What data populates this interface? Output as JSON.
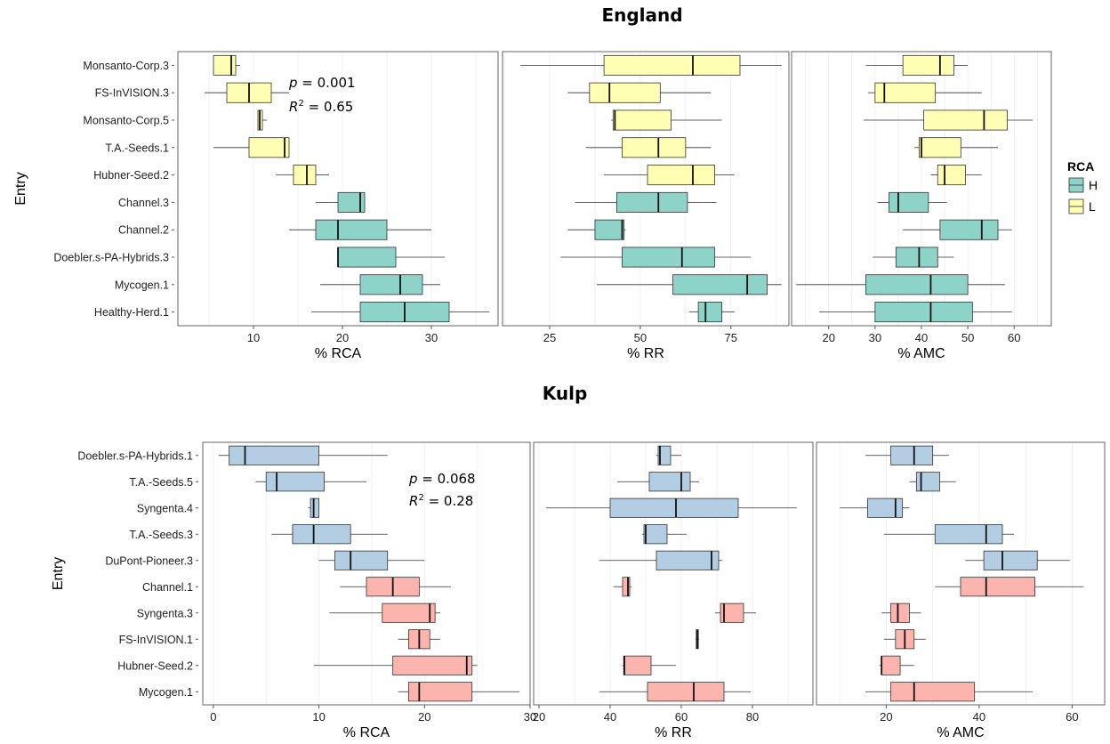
{
  "legend": {
    "title": "RCA",
    "items": [
      {
        "key": "H",
        "label": "H",
        "color": "#8dd3c7"
      },
      {
        "key": "L",
        "label": "L",
        "color": "#ffffb3"
      }
    ]
  },
  "chart_data": [
    {
      "type": "boxplot",
      "title": "England",
      "ylabel": "Entry",
      "group_colors": {
        "H": "#8dd3c7",
        "L": "#ffffb3"
      },
      "entries": [
        "Monsanto-Corp.3",
        "FS-InVISION.3",
        "Monsanto-Corp.5",
        "T.A.-Seeds.1",
        "Hubner-Seed.2",
        "Channel.3",
        "Channel.2",
        "Doebler.s-PA-Hybrids.3",
        "Mycogen.1",
        "Healthy-Herd.1"
      ],
      "groups": [
        "L",
        "L",
        "L",
        "L",
        "L",
        "H",
        "H",
        "H",
        "H",
        "H"
      ],
      "stats": {
        "p_label": "p",
        "p_value": "= 0.001",
        "r2_label": "R",
        "r2_value": "= 0.65"
      },
      "panels": [
        {
          "xlabel": "% RCA",
          "xlim": [
            1.5,
            37.5
          ],
          "xticks": [
            10,
            20,
            30
          ],
          "boxes": [
            [
              5.5,
              5.5,
              7.5,
              8.0,
              8.5
            ],
            [
              4.5,
              7.0,
              9.5,
              12.0,
              14.0
            ],
            [
              10.5,
              10.5,
              10.7,
              11.0,
              11.5
            ],
            [
              5.5,
              9.5,
              13.5,
              14.0,
              14.0
            ],
            [
              12.5,
              14.5,
              16.0,
              17.0,
              18.5
            ],
            [
              17.0,
              19.5,
              22.0,
              22.5,
              22.5
            ],
            [
              14.0,
              17.0,
              19.5,
              25.0,
              30.0
            ],
            [
              19.5,
              19.5,
              19.5,
              26.0,
              31.5
            ],
            [
              17.5,
              22.0,
              26.5,
              29.0,
              31.0
            ],
            [
              16.5,
              22.0,
              27.0,
              32.0,
              36.5
            ]
          ]
        },
        {
          "xlabel": "% RR",
          "xlim": [
            12.0,
            91.0
          ],
          "xticks": [
            25,
            50,
            75
          ],
          "boxes": [
            [
              17.0,
              40.0,
              64.5,
              77.5,
              89.0
            ],
            [
              30.0,
              36.0,
              41.5,
              55.5,
              69.5
            ],
            [
              42.0,
              42.5,
              43.0,
              58.5,
              72.5
            ],
            [
              35.0,
              45.0,
              55.0,
              62.5,
              69.5
            ],
            [
              40.0,
              52.0,
              64.5,
              70.5,
              76.0
            ],
            [
              32.0,
              43.5,
              55.0,
              63.0,
              71.0
            ],
            [
              30.0,
              37.5,
              45.0,
              45.5,
              46.0
            ],
            [
              28.0,
              45.0,
              61.5,
              70.5,
              80.5
            ],
            [
              38.0,
              59.0,
              79.5,
              85.0,
              89.0
            ],
            [
              63.5,
              66.0,
              68.0,
              72.5,
              76.0
            ]
          ]
        },
        {
          "xlabel": "% AMC",
          "xlim": [
            12.0,
            68.0
          ],
          "xticks": [
            20,
            30,
            40,
            50,
            60
          ],
          "boxes": [
            [
              28.0,
              36.0,
              44.0,
              47.0,
              50.0
            ],
            [
              28.5,
              30.0,
              32.0,
              43.0,
              53.0
            ],
            [
              27.5,
              40.5,
              53.5,
              58.5,
              64.0
            ],
            [
              38.5,
              39.5,
              40.0,
              48.5,
              56.5
            ],
            [
              42.0,
              43.5,
              45.0,
              49.5,
              53.0
            ],
            [
              30.5,
              33.0,
              35.0,
              41.5,
              45.5
            ],
            [
              36.0,
              44.0,
              53.0,
              56.5,
              59.5
            ],
            [
              29.5,
              34.5,
              39.5,
              43.5,
              47.0
            ],
            [
              13.0,
              28.0,
              42.0,
              50.0,
              58.0
            ],
            [
              18.0,
              30.0,
              42.0,
              51.0,
              59.5
            ]
          ]
        }
      ]
    },
    {
      "type": "boxplot",
      "title": "Kulp",
      "ylabel": "Entry",
      "group_colors": {
        "H": "#b3cde3",
        "L": "#fbb4ae"
      },
      "entries": [
        "Doebler.s-PA-Hybrids.1",
        "T.A.-Seeds.5",
        "Syngenta.4",
        "T.A.-Seeds.3",
        "DuPont-Pioneer.3",
        "Channel.1",
        "Syngenta.3",
        "FS-InVISION.1",
        "Hubner-Seed.2",
        "Mycogen.1"
      ],
      "groups": [
        "H",
        "H",
        "H",
        "H",
        "H",
        "L",
        "L",
        "L",
        "L",
        "L"
      ],
      "stats": {
        "p_label": "p",
        "p_value": "= 0.068",
        "r2_label": "R",
        "r2_value": "= 0.28"
      },
      "panels": [
        {
          "xlabel": "% RCA",
          "xlim": [
            -1.0,
            30.0
          ],
          "xticks": [
            0,
            10,
            20,
            30
          ],
          "boxes": [
            [
              0.5,
              1.5,
              3.0,
              10.0,
              16.5
            ],
            [
              4.0,
              5.0,
              6.0,
              10.5,
              14.5
            ],
            [
              9.0,
              9.2,
              9.5,
              10.0,
              10.0
            ],
            [
              5.5,
              7.5,
              9.5,
              13.0,
              16.5
            ],
            [
              10.0,
              11.5,
              13.0,
              16.5,
              20.0
            ],
            [
              12.0,
              14.5,
              17.0,
              19.5,
              22.5
            ],
            [
              11.0,
              16.0,
              20.5,
              21.0,
              21.5
            ],
            [
              17.5,
              18.5,
              19.5,
              20.5,
              21.5
            ],
            [
              9.5,
              17.0,
              24.0,
              24.5,
              25.0
            ],
            [
              17.5,
              18.5,
              19.5,
              24.5,
              29.0
            ]
          ]
        },
        {
          "xlabel": "% RR",
          "xlim": [
            18.5,
            97.0
          ],
          "xticks": [
            20,
            40,
            60,
            80
          ],
          "boxes": [
            [
              53.0,
              53.5,
              54.0,
              57.0,
              60.0
            ],
            [
              42.0,
              51.0,
              60.0,
              62.5,
              65.0
            ],
            [
              22.0,
              40.0,
              58.5,
              76.0,
              92.5
            ],
            [
              49.0,
              49.5,
              50.0,
              56.0,
              61.5
            ],
            [
              37.0,
              53.0,
              68.5,
              70.5,
              71.5
            ],
            [
              41.0,
              43.5,
              45.0,
              45.5,
              46.0
            ],
            [
              69.5,
              71.0,
              72.0,
              77.5,
              81.0
            ],
            [
              64.0,
              64.2,
              64.5,
              64.8,
              65.0
            ],
            [
              43.5,
              43.8,
              44.0,
              51.5,
              58.5
            ],
            [
              37.0,
              50.5,
              63.5,
              72.0,
              79.5
            ]
          ]
        },
        {
          "xlabel": "% AMC",
          "xlim": [
            5.0,
            67.0
          ],
          "xticks": [
            20,
            40,
            60
          ],
          "boxes": [
            [
              15.5,
              21.0,
              26.0,
              30.0,
              33.5
            ],
            [
              25.0,
              26.5,
              27.5,
              31.5,
              35.0
            ],
            [
              10.0,
              16.0,
              22.0,
              23.5,
              25.0
            ],
            [
              19.5,
              30.5,
              41.5,
              45.0,
              47.5
            ],
            [
              37.0,
              41.0,
              45.0,
              52.5,
              59.5
            ],
            [
              30.5,
              36.0,
              41.5,
              52.0,
              62.5
            ],
            [
              19.0,
              21.0,
              22.5,
              25.0,
              27.5
            ],
            [
              19.5,
              22.0,
              24.0,
              26.0,
              28.5
            ],
            [
              18.5,
              19.0,
              19.0,
              23.0,
              26.0
            ],
            [
              15.5,
              21.0,
              26.0,
              39.0,
              51.5
            ]
          ]
        }
      ]
    }
  ]
}
